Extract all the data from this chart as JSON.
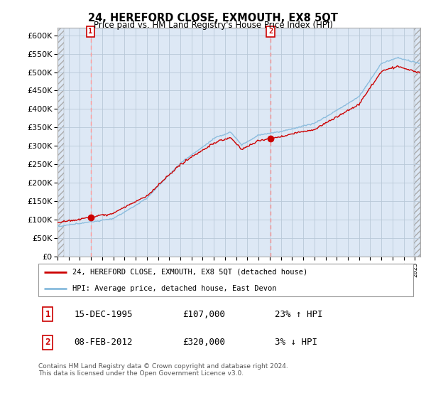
{
  "title": "24, HEREFORD CLOSE, EXMOUTH, EX8 5QT",
  "subtitle": "Price paid vs. HM Land Registry's House Price Index (HPI)",
  "legend_line1": "24, HEREFORD CLOSE, EXMOUTH, EX8 5QT (detached house)",
  "legend_line2": "HPI: Average price, detached house, East Devon",
  "footnote": "Contains HM Land Registry data © Crown copyright and database right 2024.\nThis data is licensed under the Open Government Licence v3.0.",
  "sale1_date": "15-DEC-1995",
  "sale1_price": 107000,
  "sale1_label": "23% ↑ HPI",
  "sale2_date": "08-FEB-2012",
  "sale2_price": 320000,
  "sale2_label": "3% ↓ HPI",
  "ylim": [
    0,
    620000
  ],
  "xlim_left": 1993.0,
  "xlim_right": 2025.5,
  "ytick_step": 50000,
  "background_plot": "#dde8f5",
  "background_hatch": "#e8ecf0",
  "grid_color": "#b8c8d8",
  "line_color_property": "#cc0000",
  "line_color_hpi": "#88bbdd",
  "sale_marker_color": "#cc0000",
  "sale_vline_color": "#ff9999",
  "annotation_box_color": "#cc0000",
  "sale1_t": 1995.958,
  "sale2_t": 2012.083
}
